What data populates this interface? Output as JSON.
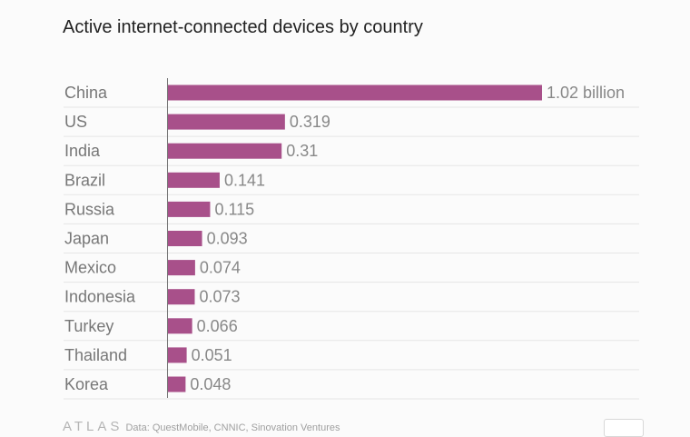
{
  "chart_data": {
    "type": "bar",
    "orientation": "horizontal",
    "title": "Active internet-connected devices by country",
    "categories": [
      "China",
      "US",
      "India",
      "Brazil",
      "Russia",
      "Japan",
      "Mexico",
      "Indonesia",
      "Turkey",
      "Thailand",
      "Korea"
    ],
    "values": [
      1.02,
      0.319,
      0.31,
      0.141,
      0.115,
      0.093,
      0.074,
      0.073,
      0.066,
      0.051,
      0.048
    ],
    "value_labels": [
      "1.02 billion",
      "0.319",
      "0.31",
      "0.141",
      "0.115",
      "0.093",
      "0.074",
      "0.073",
      "0.066",
      "0.051",
      "0.048"
    ],
    "xlim": [
      0,
      1.02
    ],
    "grid": true,
    "bar_color": "#a8508a"
  },
  "footer": {
    "logo": "ATLAS",
    "source": "Data: QuestMobile, CNNIC, Sinovation Ventures"
  }
}
